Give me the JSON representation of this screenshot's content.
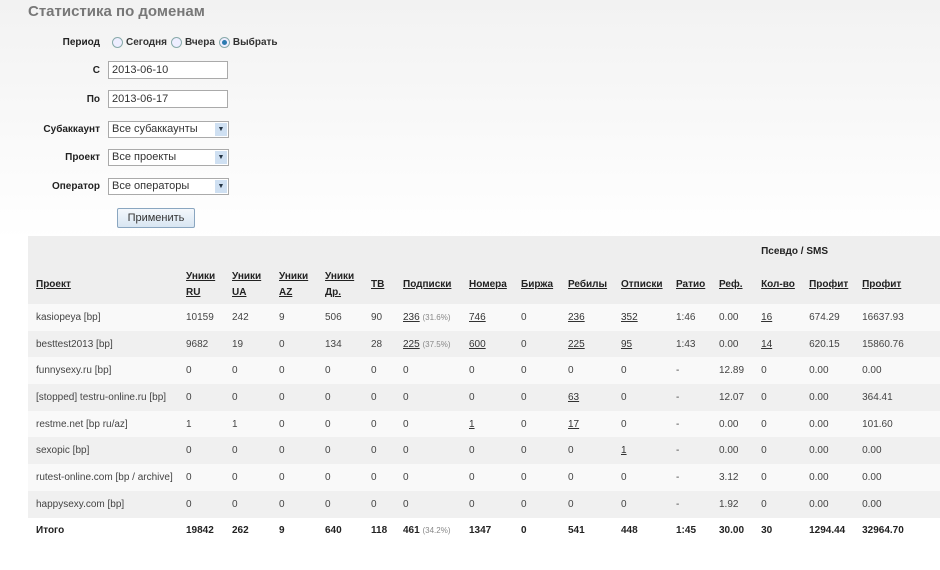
{
  "title": "Статистика по доменам",
  "form": {
    "period_label": "Период",
    "period_options": [
      {
        "label": "Сегодня",
        "selected": false
      },
      {
        "label": "Вчера",
        "selected": false
      },
      {
        "label": "Выбрать",
        "selected": true
      }
    ],
    "from_label": "С",
    "from_value": "2013-06-10",
    "to_label": "По",
    "to_value": "2013-06-17",
    "subaccount_label": "Субаккаунт",
    "subaccount_value": "Все субаккаунты",
    "project_label": "Проект",
    "project_value": "Все проекты",
    "operator_label": "Оператор",
    "operator_value": "Все операторы",
    "apply_label": "Применить"
  },
  "table": {
    "group_header": "Псевдо / SMS",
    "columns": [
      [
        "Проект"
      ],
      [
        "Уники",
        "RU"
      ],
      [
        "Уники",
        "UA"
      ],
      [
        "Уники",
        "AZ"
      ],
      [
        "Уники",
        "Др."
      ],
      [
        "ТВ"
      ],
      [
        "Подписки"
      ],
      [
        "Номера"
      ],
      [
        "Биржа"
      ],
      [
        "Ребилы"
      ],
      [
        "Отписки"
      ],
      [
        "Ратио"
      ],
      [
        "Реф."
      ],
      [
        "Кол-во"
      ],
      [
        "Профит"
      ],
      [
        "Профит"
      ]
    ],
    "rows": [
      [
        "kasiopeya [bp]",
        "10159",
        "242",
        "9",
        "506",
        "90",
        {
          "v": "236",
          "link": true,
          "pct": "(31.6%)"
        },
        {
          "v": "746",
          "link": true
        },
        "0",
        {
          "v": "236",
          "link": true
        },
        {
          "v": "352",
          "link": true
        },
        "1:46",
        "0.00",
        {
          "v": "16",
          "link": true
        },
        "674.29",
        "16637.93"
      ],
      [
        "besttest2013 [bp]",
        "9682",
        "19",
        "0",
        "134",
        "28",
        {
          "v": "225",
          "link": true,
          "pct": "(37.5%)"
        },
        {
          "v": "600",
          "link": true
        },
        "0",
        {
          "v": "225",
          "link": true
        },
        {
          "v": "95",
          "link": true
        },
        "1:43",
        "0.00",
        {
          "v": "14",
          "link": true
        },
        "620.15",
        "15860.76"
      ],
      [
        "funnysexy.ru [bp]",
        "0",
        "0",
        "0",
        "0",
        "0",
        "0",
        "0",
        "0",
        "0",
        "0",
        "-",
        "12.89",
        "0",
        "0.00",
        "0.00"
      ],
      [
        "[stopped] testru-online.ru [bp]",
        "0",
        "0",
        "0",
        "0",
        "0",
        "0",
        "0",
        "0",
        {
          "v": "63",
          "link": true
        },
        "0",
        "-",
        "12.07",
        "0",
        "0.00",
        "364.41"
      ],
      [
        "restme.net [bp ru/az]",
        "1",
        "1",
        "0",
        "0",
        "0",
        "0",
        {
          "v": "1",
          "link": true
        },
        "0",
        {
          "v": "17",
          "link": true
        },
        "0",
        "-",
        "0.00",
        "0",
        "0.00",
        "101.60"
      ],
      [
        "sexopic [bp]",
        "0",
        "0",
        "0",
        "0",
        "0",
        "0",
        "0",
        "0",
        "0",
        {
          "v": "1",
          "link": true
        },
        "-",
        "0.00",
        "0",
        "0.00",
        "0.00"
      ],
      [
        "rutest-online.com [bp / archive]",
        "0",
        "0",
        "0",
        "0",
        "0",
        "0",
        "0",
        "0",
        "0",
        "0",
        "-",
        "3.12",
        "0",
        "0.00",
        "0.00"
      ],
      [
        "happysexy.com [bp]",
        "0",
        "0",
        "0",
        "0",
        "0",
        "0",
        "0",
        "0",
        "0",
        "0",
        "-",
        "1.92",
        "0",
        "0.00",
        "0.00"
      ]
    ],
    "total": [
      "Итого",
      "19842",
      "262",
      "9",
      "640",
      "118",
      {
        "v": "461",
        "pct": "(34.2%)"
      },
      "1347",
      "0",
      "541",
      "448",
      "1:45",
      "30.00",
      "30",
      "1294.44",
      "32964.70"
    ]
  }
}
